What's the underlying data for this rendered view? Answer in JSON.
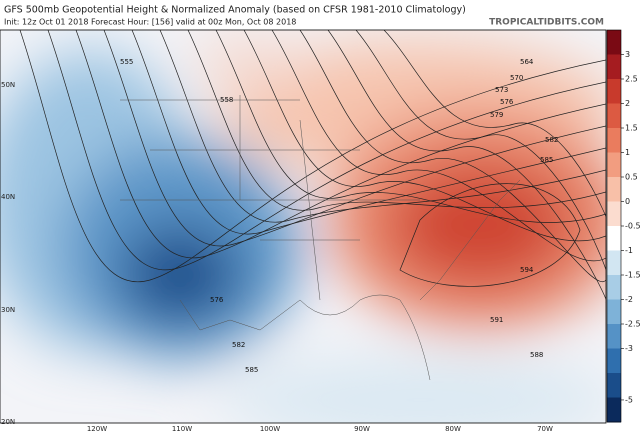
{
  "header": {
    "title": "GFS 500mb Geopotential Height & Normalized Anomaly (based on CFSR 1981-2010 Climatology)",
    "subtitle": "Init: 12z Oct 01 2018   Forecast Hour: [156]   valid at 00z Mon, Oct 08 2018",
    "site": "TROPICALTIDBITS.COM"
  },
  "map": {
    "lat_labels": [
      "50N",
      "40N",
      "30N",
      "20N"
    ],
    "lon_labels": [
      "120W",
      "110W",
      "100W",
      "90W",
      "80W",
      "70W"
    ],
    "contour_labels": [
      555,
      558,
      564,
      570,
      573,
      576,
      579,
      582,
      588,
      591,
      594,
      585,
      576,
      582,
      585
    ]
  },
  "colorbar": {
    "ticks": [
      3,
      2.5,
      2,
      1.5,
      1,
      0.5,
      0,
      -0.5,
      -1,
      -1.5,
      -2,
      -2.5,
      -3,
      -5
    ],
    "colors": [
      "#7a0a14",
      "#a51c20",
      "#c83a2c",
      "#dc5a42",
      "#ea7c5e",
      "#f29d80",
      "#f8c0a8",
      "#fbdccf",
      "#ffffff",
      "#d2e6f2",
      "#a8cde6",
      "#7eb2d8",
      "#5592c6",
      "#2f6fae",
      "#1a4d8a",
      "#0b2a5c"
    ]
  }
}
